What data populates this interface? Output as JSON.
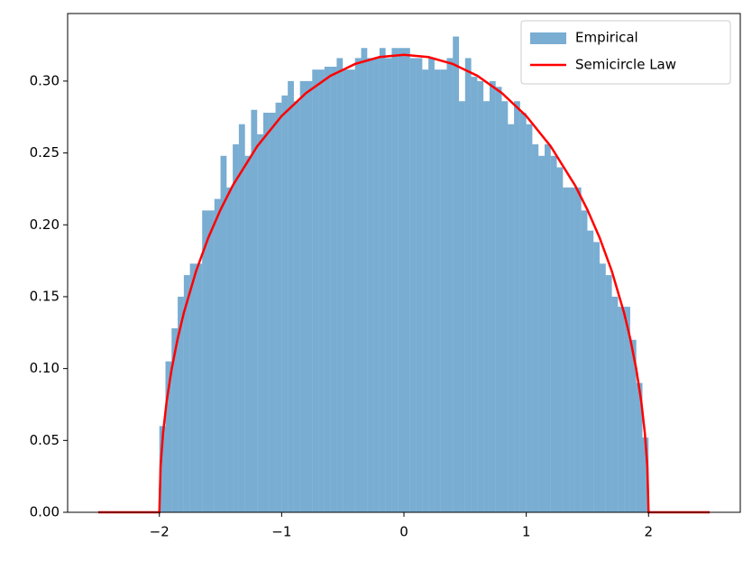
{
  "chart_data": {
    "type": "histogram",
    "xlim": [
      -2.75,
      2.75
    ],
    "ylim": [
      0,
      0.347
    ],
    "xticks": [
      {
        "value": -2,
        "label": "−2"
      },
      {
        "value": -1,
        "label": "−1"
      },
      0,
      1,
      2
    ],
    "yticks": [
      {
        "value": 0,
        "label": "0.00"
      },
      {
        "value": 0.05,
        "label": "0.05"
      },
      {
        "value": 0.1,
        "label": "0.10"
      },
      {
        "value": 0.15,
        "label": "0.15"
      },
      {
        "value": 0.2,
        "label": "0.20"
      },
      {
        "value": 0.25,
        "label": "0.25"
      },
      {
        "value": 0.3,
        "label": "0.30"
      }
    ],
    "legend": "upper right",
    "series": [
      {
        "name": "Empirical",
        "type": "histogram",
        "color": "#1f77b4",
        "alpha": 0.6,
        "bins": [
          -2,
          -1.95,
          -1.9,
          -1.85,
          -1.8,
          -1.75,
          -1.7,
          -1.65,
          -1.6,
          -1.55,
          -1.5,
          -1.45,
          -1.4,
          -1.35,
          -1.3,
          -1.25,
          -1.2,
          -1.15,
          -1.1,
          -1.05,
          -1,
          -0.95,
          -0.9,
          -0.85,
          -0.8,
          -0.75,
          -0.7,
          -0.65,
          -0.6,
          -0.55,
          -0.5,
          -0.45,
          -0.4,
          -0.35,
          -0.3,
          -0.25,
          -0.2,
          -0.15,
          -0.1,
          -0.05,
          0,
          0.05,
          0.1,
          0.15,
          0.2,
          0.25,
          0.3,
          0.35,
          0.4,
          0.45,
          0.5,
          0.55,
          0.6,
          0.65,
          0.7,
          0.75,
          0.8,
          0.85,
          0.9,
          0.95,
          1,
          1.05,
          1.1,
          1.15,
          1.2,
          1.25,
          1.3,
          1.35,
          1.4,
          1.45,
          1.5,
          1.55,
          1.6,
          1.65,
          1.7,
          1.75,
          1.8,
          1.85,
          1.9,
          1.95,
          2
        ],
        "values": [
          0.06,
          0.105,
          0.128,
          0.15,
          0.165,
          0.173,
          0.173,
          0.21,
          0.21,
          0.218,
          0.248,
          0.226,
          0.256,
          0.27,
          0.248,
          0.28,
          0.263,
          0.278,
          0.278,
          0.285,
          0.29,
          0.3,
          0.286,
          0.3,
          0.3,
          0.308,
          0.308,
          0.31,
          0.31,
          0.316,
          0.308,
          0.308,
          0.316,
          0.323,
          0.316,
          0.316,
          0.323,
          0.316,
          0.323,
          0.323,
          0.323,
          0.316,
          0.316,
          0.308,
          0.316,
          0.308,
          0.308,
          0.316,
          0.331,
          0.286,
          0.316,
          0.303,
          0.3,
          0.286,
          0.3,
          0.296,
          0.286,
          0.27,
          0.286,
          0.278,
          0.27,
          0.256,
          0.248,
          0.256,
          0.248,
          0.24,
          0.226,
          0.226,
          0.226,
          0.21,
          0.196,
          0.188,
          0.173,
          0.165,
          0.15,
          0.143,
          0.143,
          0.12,
          0.09,
          0.052
        ]
      },
      {
        "name": "Semicircle Law",
        "type": "line",
        "color": "#ff0000",
        "x": [
          -2.5,
          -2,
          -1.99,
          -1.97,
          -1.94,
          -1.9,
          -1.85,
          -1.8,
          -1.7,
          -1.6,
          -1.5,
          -1.4,
          -1.2,
          -1,
          -0.8,
          -0.6,
          -0.4,
          -0.2,
          0,
          0.2,
          0.4,
          0.6,
          0.8,
          1,
          1.2,
          1.4,
          1.5,
          1.6,
          1.7,
          1.8,
          1.85,
          1.9,
          1.94,
          1.97,
          1.99,
          2,
          2.5
        ],
        "values": [
          0,
          0,
          0.0318,
          0.0549,
          0.0774,
          0.0994,
          0.1209,
          0.1387,
          0.1677,
          0.191,
          0.2105,
          0.2273,
          0.2546,
          0.2757,
          0.2917,
          0.3037,
          0.3119,
          0.3167,
          0.3183,
          0.3167,
          0.3119,
          0.3037,
          0.2917,
          0.2757,
          0.2546,
          0.2273,
          0.2105,
          0.191,
          0.1677,
          0.1387,
          0.1209,
          0.0994,
          0.0774,
          0.0549,
          0.0318,
          0,
          0
        ]
      }
    ]
  }
}
